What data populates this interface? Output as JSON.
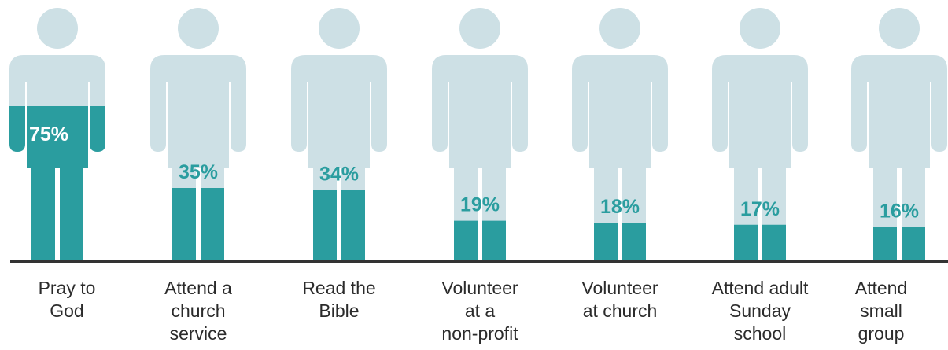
{
  "chart_data": {
    "type": "bar",
    "categories": [
      "Pray to\nGod",
      "Attend a\nchurch\nservice",
      "Read the\nBible",
      "Volunteer\nat a\nnon-profit",
      "Volunteer\nat church",
      "Attend adult\nSunday\nschool",
      "Attend\nsmall\ngroup"
    ],
    "values": [
      75,
      35,
      34,
      19,
      18,
      17,
      16
    ],
    "value_labels": [
      "75%",
      "35%",
      "34%",
      "19%",
      "18%",
      "17%",
      "16%"
    ],
    "ylim": [
      0,
      100
    ],
    "colors": {
      "fill": "#2a9d9f",
      "figure": "#cde0e5",
      "baseline": "#333333",
      "label_inside": "#ffffff",
      "label_outside": "#2a9d9f"
    }
  }
}
